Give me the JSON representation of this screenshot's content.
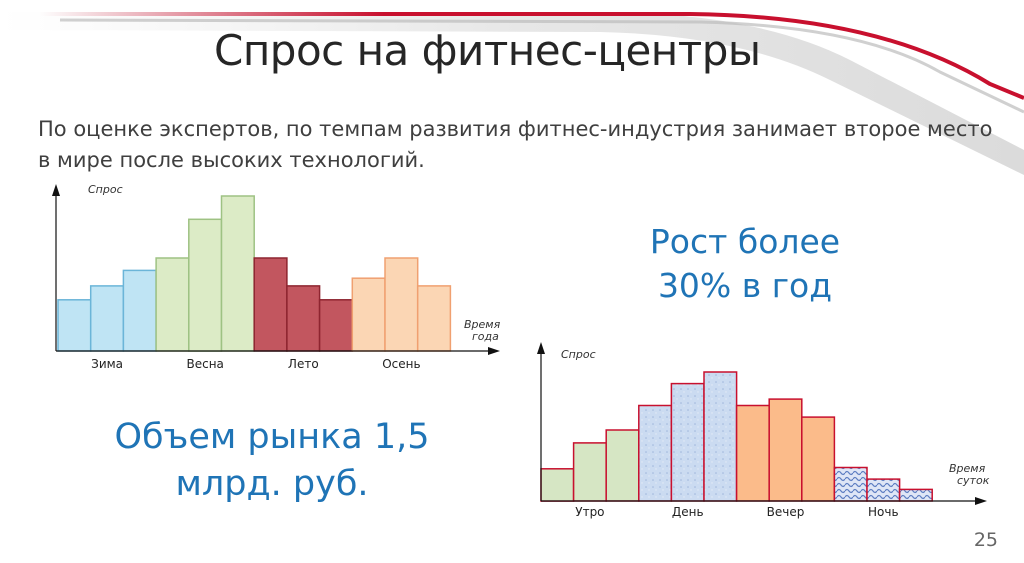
{
  "slide": {
    "title": "Спрос на фитнес-центры",
    "subtitle": "По оценке экспертов, по темпам развития фитнес-индустрия занимает второе место в мире после высоких технологий.",
    "callout_growth": "Рост более 30% в год",
    "callout_volume": "Объем рынка 1,5 млрд. руб.",
    "page_number": "25",
    "accent_color": "#c8102e",
    "callout_color": "#1f74b6"
  },
  "chart_data": [
    {
      "type": "bar",
      "title": "",
      "ylabel": "Спрос",
      "xlabel": "Время года",
      "y_unit_note": "no numeric scale printed; values are relative heights",
      "ylim": [
        0,
        1
      ],
      "groups": [
        "Зима",
        "Весна",
        "Лето",
        "Осень"
      ],
      "values": [
        0.33,
        0.42,
        0.52,
        0.6,
        0.85,
        1.0,
        0.6,
        0.42,
        0.33,
        0.47,
        0.6,
        0.42
      ],
      "bar_groups": [
        0,
        0,
        0,
        1,
        1,
        1,
        2,
        2,
        2,
        3,
        3,
        3
      ],
      "group_colors": [
        "#bfe4f4",
        "#dcebc6",
        "#c2565f",
        "#fbd6b4"
      ],
      "group_strokes": [
        "#6bb5d8",
        "#9ec283",
        "#8e2530",
        "#f0a070"
      ],
      "grid": false
    },
    {
      "type": "bar",
      "title": "",
      "ylabel": "Спрос",
      "xlabel": "Время суток",
      "y_unit_note": "no numeric scale printed; values are relative heights",
      "ylim": [
        0,
        1
      ],
      "groups": [
        "Утро",
        "День",
        "Вечер",
        "Ночь"
      ],
      "values": [
        0.25,
        0.45,
        0.55,
        0.74,
        0.91,
        1.0,
        0.74,
        0.79,
        0.65,
        0.26,
        0.17,
        0.09
      ],
      "bar_groups": [
        0,
        0,
        0,
        1,
        1,
        1,
        2,
        2,
        2,
        3,
        3,
        3
      ],
      "group_colors": [
        "#d6e6c4",
        "#c9d9ee",
        "#fbbb8a",
        "#b9c6e6"
      ],
      "group_strokes": [
        "#c8102e",
        "#c8102e",
        "#c8102e",
        "#c8102e"
      ],
      "grid": false
    }
  ]
}
